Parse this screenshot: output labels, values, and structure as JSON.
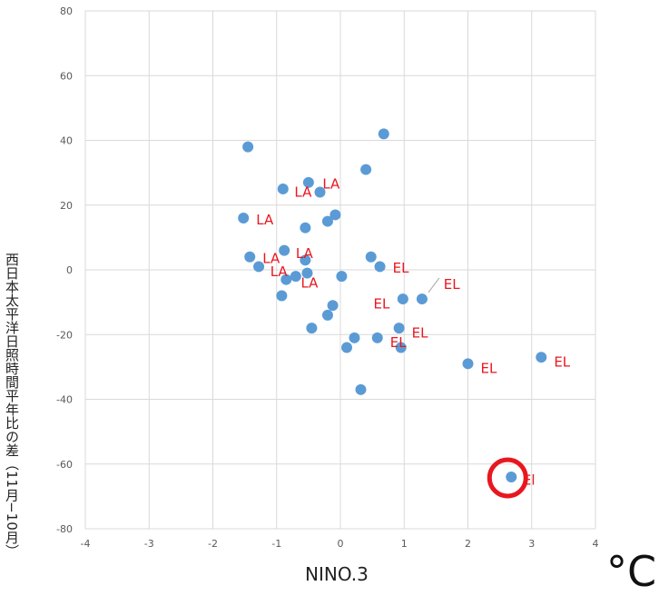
{
  "chart_data": {
    "type": "scatter",
    "xlabel": "NINO.3",
    "ylabel": "西日本太平洋日照時間平年比の差（11月−10月）",
    "unit_label": "°C",
    "xlim": [
      -4,
      4
    ],
    "ylim": [
      -80,
      80
    ],
    "x_ticks": [
      "-4",
      "-3",
      "-2",
      "-1",
      "0",
      "1",
      "2",
      "3",
      "4"
    ],
    "y_ticks": [
      "-80",
      "-60",
      "-40",
      "-20",
      "0",
      "20",
      "40",
      "60",
      "80"
    ],
    "grid": true,
    "marker_color": "#5b9bd5",
    "label_color": "#e8171f",
    "highlight_color": "#e8171f",
    "points": [
      {
        "x": -1.45,
        "y": 38
      },
      {
        "x": -0.9,
        "y": 25
      },
      {
        "x": -0.5,
        "y": 27
      },
      {
        "x": -0.32,
        "y": 24
      },
      {
        "x": -1.52,
        "y": 16
      },
      {
        "x": -0.55,
        "y": 13
      },
      {
        "x": -0.2,
        "y": 15
      },
      {
        "x": -0.08,
        "y": 17
      },
      {
        "x": 0.4,
        "y": 31
      },
      {
        "x": 0.68,
        "y": 42
      },
      {
        "x": -1.42,
        "y": 4
      },
      {
        "x": -1.28,
        "y": 1
      },
      {
        "x": -0.88,
        "y": 6
      },
      {
        "x": -0.85,
        "y": -3
      },
      {
        "x": -0.7,
        "y": -2
      },
      {
        "x": -0.55,
        "y": 3
      },
      {
        "x": -0.52,
        "y": -1
      },
      {
        "x": -0.92,
        "y": -8
      },
      {
        "x": 0.02,
        "y": -2
      },
      {
        "x": -0.12,
        "y": -11
      },
      {
        "x": -0.2,
        "y": -14
      },
      {
        "x": -0.45,
        "y": -18
      },
      {
        "x": 0.48,
        "y": 4
      },
      {
        "x": 0.62,
        "y": 1
      },
      {
        "x": 0.98,
        "y": -9
      },
      {
        "x": 1.28,
        "y": -9
      },
      {
        "x": 0.92,
        "y": -18
      },
      {
        "x": 0.95,
        "y": -24
      },
      {
        "x": 0.58,
        "y": -21
      },
      {
        "x": 0.22,
        "y": -21
      },
      {
        "x": 0.1,
        "y": -24
      },
      {
        "x": 0.32,
        "y": -37
      },
      {
        "x": 2.0,
        "y": -29
      },
      {
        "x": 3.15,
        "y": -27
      },
      {
        "x": 2.68,
        "y": -64
      }
    ],
    "annotations": [
      {
        "text": "LA",
        "x": -0.72,
        "y": 24
      },
      {
        "text": "LA",
        "x": -0.28,
        "y": 26.5
      },
      {
        "text": "LA",
        "x": -1.32,
        "y": 15.5
      },
      {
        "text": "LA",
        "x": -1.22,
        "y": 3.5
      },
      {
        "text": "LA",
        "x": -0.7,
        "y": 5
      },
      {
        "text": "LA",
        "x": -1.1,
        "y": -0.5
      },
      {
        "text": "LA",
        "x": -0.62,
        "y": -4
      },
      {
        "text": "EL",
        "x": 0.82,
        "y": 0.5
      },
      {
        "text": "EL",
        "x": 1.62,
        "y": -4.5
      },
      {
        "text": "EL",
        "x": 0.52,
        "y": -10.5
      },
      {
        "text": "EL",
        "x": 1.12,
        "y": -19.5
      },
      {
        "text": "EL",
        "x": 0.78,
        "y": -22.5
      },
      {
        "text": "EL",
        "x": 2.2,
        "y": -30.5
      },
      {
        "text": "EL",
        "x": 3.35,
        "y": -28.5
      },
      {
        "text": "El",
        "x": 2.86,
        "y": -65
      }
    ],
    "leader_line": {
      "from": {
        "x": 1.38,
        "y": -7
      },
      "to": {
        "x": 1.55,
        "y": -2.5
      }
    },
    "highlighted_point": {
      "x": 2.68,
      "y": -64
    }
  }
}
